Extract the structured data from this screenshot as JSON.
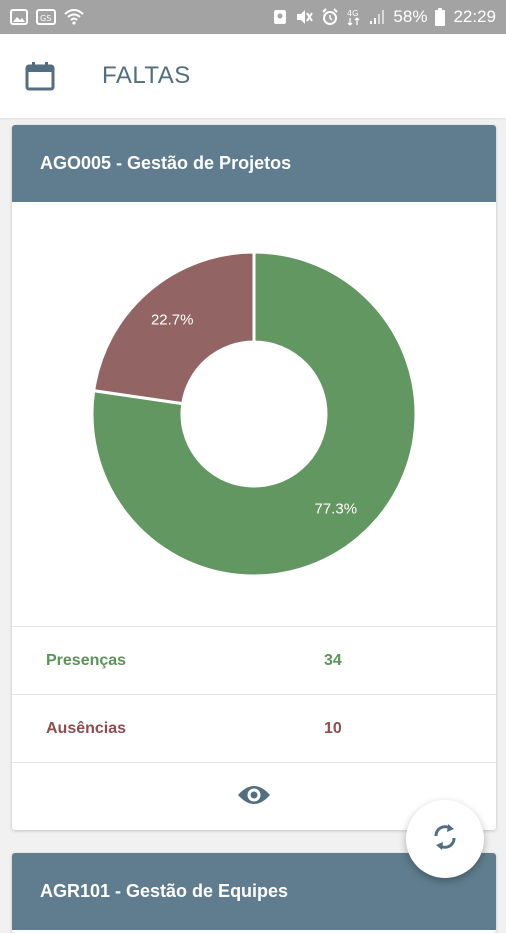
{
  "status_bar": {
    "battery": "58%",
    "time": "22:29",
    "icons": [
      "image-icon",
      "cast-icon",
      "wifi-icon",
      "profile-icon",
      "mute-icon",
      "alarm-icon",
      "4g-icon",
      "signal-icon",
      "battery-icon"
    ]
  },
  "header": {
    "title": "FALTAS",
    "icon": "calendar-icon"
  },
  "cards": [
    {
      "title": "AGO005 - Gestão de Projetos",
      "presences_label": "Presenças",
      "presences_value": "34",
      "absences_label": "Ausências",
      "absences_value": "10",
      "view_icon": "eye-icon"
    },
    {
      "title": "AGR101 - Gestão de Equipes"
    }
  ],
  "fab": {
    "icon": "sync-icon"
  },
  "colors": {
    "header_bg": "#5f7d8e",
    "title_text": "#536e80",
    "presence": "#5b9457",
    "absence": "#8e4d4f",
    "icon": "#536e80"
  },
  "chart_data": {
    "type": "pie",
    "labels": [
      "Presenças",
      "Ausências"
    ],
    "values": [
      77.3,
      22.7
    ],
    "value_labels": [
      "77.3%",
      "22.7%"
    ],
    "colors": [
      "#629761",
      "#926564"
    ],
    "donut": true
  }
}
